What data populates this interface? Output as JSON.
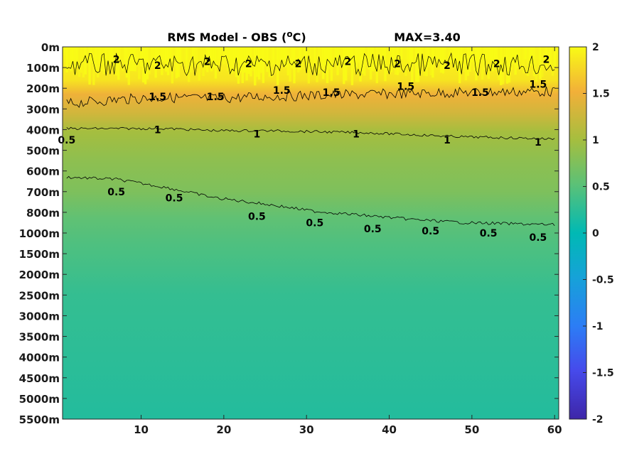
{
  "chart_data": {
    "type": "heatmap",
    "title": "RMS Model - OBS (",
    "title_sup": "o",
    "title_unit": "C)",
    "annotation": "MAX=3.40",
    "x_ticks": [
      10,
      20,
      30,
      40,
      50,
      60
    ],
    "xlim": [
      0.5,
      60.5
    ],
    "y_tick_labels": [
      "0m",
      "100m",
      "200m",
      "300m",
      "400m",
      "500m",
      "600m",
      "700m",
      "800m",
      "1000m",
      "1500m",
      "2000m",
      "2500m",
      "3000m",
      "3500m",
      "4000m",
      "4500m",
      "5000m",
      "5500m"
    ],
    "colorbar": {
      "clim": [
        -2,
        2
      ],
      "ticks": [
        2,
        1.5,
        1,
        0.5,
        0,
        -0.5,
        -1,
        -1.5,
        -2
      ],
      "tick_labels": [
        "2",
        "1.5",
        "1",
        "0.5",
        "0",
        "-0.5",
        "-1",
        "-1.5",
        "-2"
      ],
      "colormap": "parula"
    },
    "contour_levels": [
      0.5,
      1,
      1.5,
      2
    ],
    "contours": [
      {
        "level": 1.5,
        "label": "1.5",
        "depth_index": [
          2.75,
          2.55,
          2.45,
          2.5,
          2.4,
          2.35,
          2.3,
          2.25,
          2.2,
          2.15
        ]
      },
      {
        "level": 1,
        "label": "1",
        "depth_index": [
          3.95,
          3.95,
          3.95,
          4.05,
          4.05,
          4.1,
          4.15,
          4.25,
          4.35,
          4.45
        ]
      },
      {
        "level": 0.5,
        "label": "0.5",
        "depth_index": [
          6.3,
          6.4,
          6.8,
          7.3,
          7.6,
          7.95,
          8.15,
          8.35,
          8.5,
          8.6
        ]
      }
    ],
    "contour_x": [
      1,
      7,
      13,
      19,
      25,
      31,
      37,
      43,
      49,
      60
    ],
    "contour_labels": [
      {
        "text": "2",
        "x": 7,
        "y": 0.6
      },
      {
        "text": "2",
        "x": 12,
        "y": 0.9
      },
      {
        "text": "2",
        "x": 18,
        "y": 0.7
      },
      {
        "text": "2",
        "x": 23,
        "y": 0.8
      },
      {
        "text": "2",
        "x": 29,
        "y": 0.8
      },
      {
        "text": "2",
        "x": 35,
        "y": 0.7
      },
      {
        "text": "2",
        "x": 41,
        "y": 0.8
      },
      {
        "text": "2",
        "x": 47,
        "y": 0.9
      },
      {
        "text": "2",
        "x": 53,
        "y": 0.8
      },
      {
        "text": "2",
        "x": 59,
        "y": 0.6
      },
      {
        "text": "1.5",
        "x": 12,
        "y": 2.4
      },
      {
        "text": "1.5",
        "x": 19,
        "y": 2.4
      },
      {
        "text": "1.5",
        "x": 27,
        "y": 2.1
      },
      {
        "text": "1.5",
        "x": 33,
        "y": 2.2
      },
      {
        "text": "1.5",
        "x": 42,
        "y": 1.9
      },
      {
        "text": "1.5",
        "x": 51,
        "y": 2.2
      },
      {
        "text": "1.5",
        "x": 58,
        "y": 1.8
      },
      {
        "text": "1",
        "x": 12,
        "y": 4.0
      },
      {
        "text": "1",
        "x": 24,
        "y": 4.2
      },
      {
        "text": "1",
        "x": 36,
        "y": 4.2
      },
      {
        "text": "1",
        "x": 47,
        "y": 4.5
      },
      {
        "text": "1",
        "x": 58,
        "y": 4.6
      },
      {
        "text": "0.5",
        "x": 7,
        "y": 7.0
      },
      {
        "text": "0.5",
        "x": 14,
        "y": 7.3
      },
      {
        "text": "0.5",
        "x": 24,
        "y": 8.2
      },
      {
        "text": "0.5",
        "x": 31,
        "y": 8.5
      },
      {
        "text": "0.5",
        "x": 38,
        "y": 8.8
      },
      {
        "text": "0.5",
        "x": 45,
        "y": 8.9
      },
      {
        "text": "0.5",
        "x": 52,
        "y": 9.0
      },
      {
        "text": "0.5",
        "x": 58,
        "y": 9.2
      },
      {
        "text": "0.5",
        "x": 1,
        "y": 4.5
      }
    ],
    "field_profile": [
      {
        "depth_index": 0,
        "value": 2.0
      },
      {
        "depth_index": 1.6,
        "value": 1.85
      },
      {
        "depth_index": 2.3,
        "value": 1.5
      },
      {
        "depth_index": 3.2,
        "value": 1.3
      },
      {
        "depth_index": 4.1,
        "value": 1.0
      },
      {
        "depth_index": 5.5,
        "value": 0.85
      },
      {
        "depth_index": 7.0,
        "value": 0.75
      },
      {
        "depth_index": 8.3,
        "value": 0.55
      },
      {
        "depth_index": 9.5,
        "value": 0.45
      },
      {
        "depth_index": 12,
        "value": 0.3
      },
      {
        "depth_index": 15,
        "value": 0.25
      },
      {
        "depth_index": 18,
        "value": 0.2
      }
    ]
  }
}
